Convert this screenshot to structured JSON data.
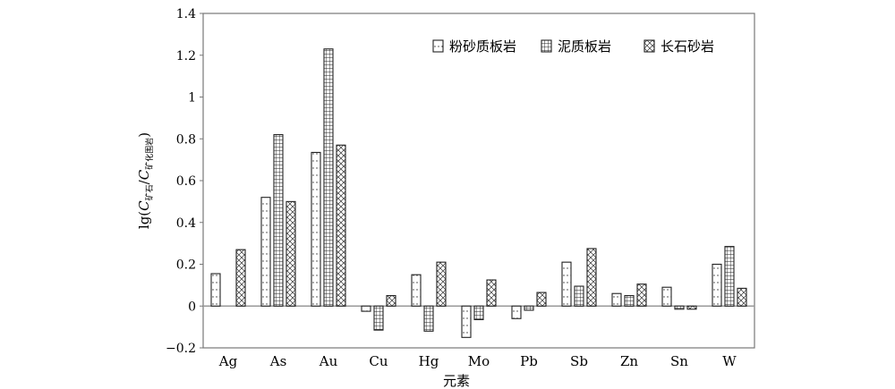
{
  "chart_data": {
    "type": "bar",
    "xlabel": "元素",
    "ylabel": {
      "base": "lg(",
      "c1": "C",
      "c1_sub": "矿石",
      "sep": "/",
      "c2": "C",
      "c2_sub": "矿化围岩",
      "close": ")"
    },
    "categories": [
      "Ag",
      "As",
      "Au",
      "Cu",
      "Hg",
      "Mo",
      "Pb",
      "Sb",
      "Zn",
      "Sn",
      "W"
    ],
    "series": [
      {
        "name": "粉砂质板岩",
        "pattern": "dots",
        "values": [
          0.155,
          0.52,
          0.735,
          -0.025,
          0.15,
          -0.15,
          -0.06,
          0.21,
          0.06,
          0.09,
          0.2
        ]
      },
      {
        "name": "泥质板岩",
        "pattern": "grid",
        "values": [
          0.0,
          0.82,
          1.23,
          -0.115,
          -0.12,
          -0.065,
          -0.02,
          0.095,
          0.05,
          -0.015,
          0.285
        ]
      },
      {
        "name": "长石砂岩",
        "pattern": "crosshatch",
        "values": [
          0.27,
          0.5,
          0.77,
          0.05,
          0.21,
          0.125,
          0.065,
          0.275,
          0.105,
          -0.015,
          0.085
        ]
      }
    ],
    "ylim": [
      -0.2,
      1.4
    ],
    "yticks": [
      -0.2,
      0,
      0.2,
      0.4,
      0.6,
      0.8,
      1,
      1.2,
      1.4
    ],
    "ytick_labels": [
      "−0.2",
      "0",
      "0.2",
      "0.4",
      "0.6",
      "0.8",
      "1",
      "1.2",
      "1.4"
    ],
    "grid": false,
    "legend_position": "top-right",
    "colors": {
      "bar_stroke": "#222222",
      "bar_fill": "#ffffff",
      "frame": "#777777",
      "zero_line": "#999999"
    }
  }
}
